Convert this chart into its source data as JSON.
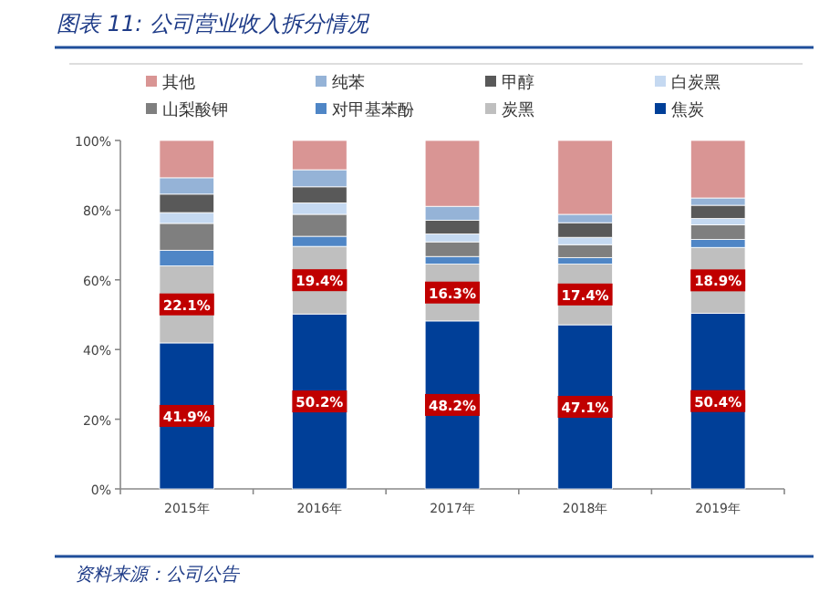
{
  "chart_data": {
    "type": "bar",
    "stacked": true,
    "title": "图表 11:  公司营业收入拆分情况",
    "annotations": [
      "资料来源：公司公告"
    ],
    "categories": [
      "2015年",
      "2016年",
      "2017年",
      "2018年",
      "2019年"
    ],
    "ylim": [
      0,
      100
    ],
    "yticks": [
      {
        "value": 0,
        "label": "0%"
      },
      {
        "value": 20,
        "label": "20%"
      },
      {
        "value": 40,
        "label": "40%"
      },
      {
        "value": 60,
        "label": "60%"
      },
      {
        "value": 80,
        "label": "80%"
      },
      {
        "value": 100,
        "label": "100%"
      }
    ],
    "legend": "top",
    "grid": false,
    "series": [
      {
        "name": "焦炭",
        "color": "#003f98",
        "values": [
          41.9,
          50.2,
          48.2,
          47.1,
          50.4
        ],
        "value_labels": [
          "41.9%",
          "50.2%",
          "48.2%",
          "47.1%",
          "50.4%"
        ]
      },
      {
        "name": "炭黑",
        "color": "#bfbfbf",
        "values": [
          22.1,
          19.4,
          16.3,
          17.4,
          18.9
        ],
        "value_labels": [
          "22.1%",
          "19.4%",
          "16.3%",
          "17.4%",
          "18.9%"
        ]
      },
      {
        "name": "对甲基苯酚",
        "color": "#4f86c6",
        "values": [
          4.5,
          2.9,
          2.2,
          1.9,
          2.3
        ]
      },
      {
        "name": "山梨酸钾",
        "color": "#7f7f7f",
        "values": [
          7.7,
          6.3,
          4.2,
          3.7,
          4.2
        ]
      },
      {
        "name": "白炭黑",
        "color": "#c5d9f1",
        "values": [
          3.1,
          3.3,
          2.3,
          2.1,
          1.8
        ]
      },
      {
        "name": "甲醇",
        "color": "#595959",
        "values": [
          5.3,
          4.6,
          3.9,
          4.2,
          3.8
        ]
      },
      {
        "name": "纯苯",
        "color": "#95b3d7",
        "values": [
          4.7,
          4.9,
          4.0,
          2.4,
          2.1
        ]
      },
      {
        "name": "其他",
        "color": "#d99594",
        "values": [
          10.7,
          8.4,
          18.9,
          21.2,
          16.5
        ]
      }
    ]
  }
}
